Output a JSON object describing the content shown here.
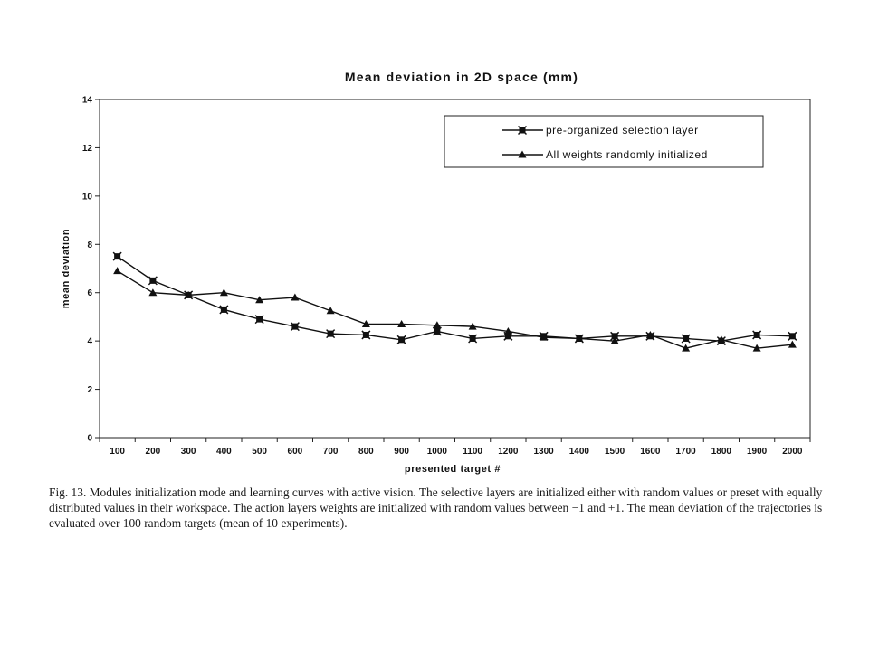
{
  "chart_data": {
    "type": "line",
    "title": "Mean deviation in 2D space (mm)",
    "xlabel": "presented target #",
    "ylabel": "mean deviation",
    "ylim": [
      0,
      14
    ],
    "yticks": [
      0,
      2,
      4,
      6,
      8,
      10,
      12,
      14
    ],
    "grid": false,
    "legend_position": "top-right",
    "categories": [
      "100",
      "200",
      "300",
      "400",
      "500",
      "600",
      "700",
      "800",
      "900",
      "1000",
      "1100",
      "1200",
      "1300",
      "1400",
      "1500",
      "1600",
      "1700",
      "1800",
      "1900",
      "2000"
    ],
    "series": [
      {
        "name": "pre-organized selection layer",
        "marker": "x-square",
        "values": [
          7.5,
          6.5,
          5.9,
          5.3,
          4.9,
          4.6,
          4.3,
          4.25,
          4.05,
          4.4,
          4.1,
          4.2,
          4.2,
          4.1,
          4.2,
          4.2,
          4.1,
          4.0,
          4.25,
          4.2
        ]
      },
      {
        "name": "All weights randomly initialized",
        "marker": "triangle",
        "values": [
          6.9,
          6.0,
          5.9,
          6.0,
          5.7,
          5.8,
          5.25,
          4.7,
          4.7,
          4.65,
          4.6,
          4.4,
          4.15,
          4.1,
          4.0,
          4.25,
          3.7,
          4.05,
          3.7,
          3.85
        ]
      }
    ]
  },
  "caption": "Fig. 13. Modules initialization mode and learning curves with active vision. The selective layers are initialized either with random values or preset with equally distributed values in their workspace. The action layers weights are initialized with random values between −1 and +1. The mean deviation of the trajectories is evaluated over 100 random targets (mean of 10 experiments)."
}
